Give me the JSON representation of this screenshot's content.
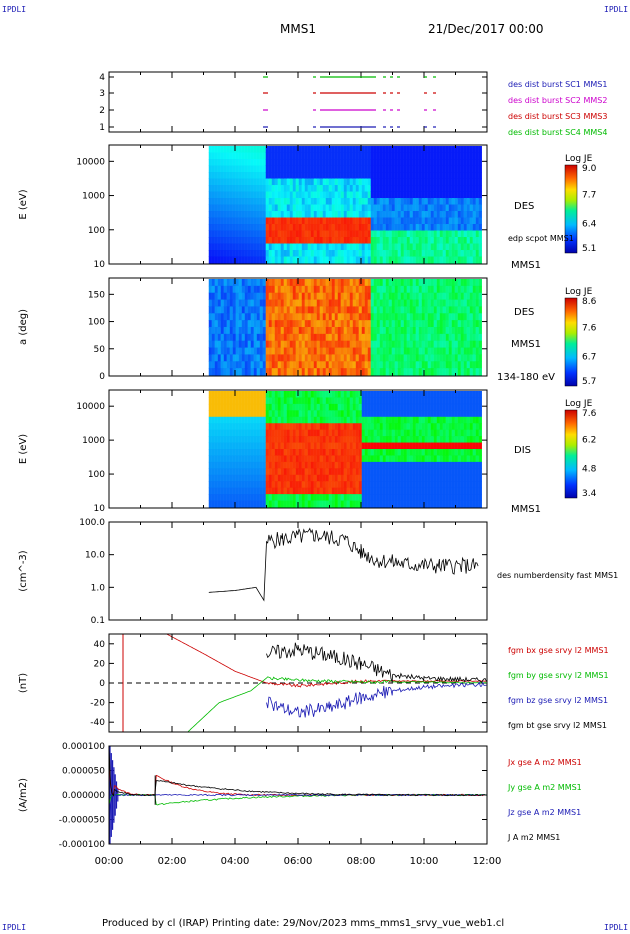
{
  "corner_labels": {
    "top_left": "IPDLI",
    "top_right": "IPDLI",
    "bottom_left": "IPDLI",
    "bottom_right": "IPDLI"
  },
  "header": {
    "title": "MMS1",
    "date": "21/Dec/2017 00:00"
  },
  "footer": {
    "text": "Produced by cl (IRAP)   Printing date: 29/Nov/2023   mms_mms1_srvy_vue_web1.cl"
  },
  "colors": {
    "mms1": "#1a1ab4",
    "mms2": "#cc00cc",
    "mms3": "#cc0000",
    "mms4": "#00bb00",
    "bt": "#000000"
  },
  "chart_data": [
    {
      "type": "scatter",
      "title": "",
      "ylabel": "",
      "yticks": [
        "1",
        "2",
        "3",
        "4"
      ],
      "legend": [
        "des dist burst SC1 MMS1",
        "des dist burst SC2 MMS2",
        "des dist burst SC3 MMS3",
        "des dist burst SC4 MMS4"
      ]
    },
    {
      "type": "heatmap",
      "ylabel": "E (eV)",
      "yscale": "log",
      "ylim": [
        10,
        30000
      ],
      "yticks": [
        "10",
        "100",
        "1000",
        "10000"
      ],
      "labels": [
        "DES",
        "edp scpot MMS1",
        "MMS1"
      ],
      "colorbar": {
        "title": "Log JE",
        "ticks": [
          "9.0",
          "7.7",
          "6.4",
          "5.1"
        ],
        "range": [
          5.1,
          9.0
        ]
      }
    },
    {
      "type": "heatmap",
      "ylabel": "a (deg)",
      "ylim": [
        0,
        180
      ],
      "yticks": [
        "0",
        "50",
        "100",
        "150"
      ],
      "labels": [
        "DES",
        "MMS1",
        "134-180 eV"
      ],
      "colorbar": {
        "title": "Log JE",
        "ticks": [
          "8.6",
          "7.6",
          "6.7",
          "5.7"
        ],
        "range": [
          5.7,
          8.6
        ]
      }
    },
    {
      "type": "heatmap",
      "ylabel": "E (eV)",
      "yscale": "log",
      "ylim": [
        10,
        30000
      ],
      "yticks": [
        "10",
        "100",
        "1000",
        "10000"
      ],
      "labels": [
        "DIS",
        "MMS1"
      ],
      "colorbar": {
        "title": "Log JE",
        "ticks": [
          "7.6",
          "6.2",
          "4.8",
          "3.4"
        ],
        "range": [
          3.4,
          7.6
        ]
      }
    },
    {
      "type": "line",
      "ylabel": "(cm^-3)",
      "yscale": "log",
      "ylim": [
        0.1,
        100
      ],
      "yticks": [
        "0.1",
        "1.0",
        "10.0",
        "100.0"
      ],
      "series": [
        {
          "name": "des numberdensity fast MMS1",
          "x": [
            "03:10",
            "04:00",
            "04:40",
            "04:55",
            "05:00",
            "05:30",
            "06:30",
            "07:30",
            "08:00",
            "08:30",
            "09:30",
            "10:30",
            "11:45"
          ],
          "y": [
            0.7,
            0.8,
            1.0,
            0.4,
            25,
            30,
            40,
            28,
            12,
            7,
            5,
            4.5,
            4.5
          ]
        }
      ]
    },
    {
      "type": "line",
      "ylabel": "(nT)",
      "ylim": [
        -50,
        50
      ],
      "yticks": [
        "-40",
        "-20",
        "0",
        "20",
        "40"
      ],
      "series": [
        {
          "name": "fgm bx gse srvy l2 MMS1",
          "x": [
            "01:50",
            "03:00",
            "04:00",
            "05:00",
            "06:00",
            "08:00",
            "10:00",
            "12:00"
          ],
          "y": [
            50,
            30,
            12,
            0,
            -3,
            2,
            2,
            2
          ]
        },
        {
          "name": "fgm by gse srvy l2 MMS1",
          "x": [
            "02:30",
            "03:30",
            "04:30",
            "05:00",
            "06:00",
            "08:00",
            "10:00",
            "12:00"
          ],
          "y": [
            -50,
            -20,
            -8,
            5,
            3,
            1,
            1,
            0
          ]
        },
        {
          "name": "fgm bz gse srvy l2 MMS1",
          "x": [
            "05:00",
            "06:00",
            "07:00",
            "08:00",
            "09:00",
            "10:00",
            "12:00"
          ],
          "y": [
            -20,
            -30,
            -25,
            -15,
            -8,
            -4,
            -1
          ]
        },
        {
          "name": "fgm bt gse srvy l2 MMS1",
          "x": [
            "05:00",
            "06:00",
            "07:00",
            "08:00",
            "09:00",
            "10:00",
            "12:00"
          ],
          "y": [
            30,
            35,
            28,
            20,
            8,
            5,
            3
          ]
        }
      ]
    },
    {
      "type": "line",
      "ylabel": "(A/m2)",
      "ylim": [
        -0.0001,
        0.0001
      ],
      "yticks": [
        "0.000100",
        "0.000050",
        "0.000000",
        "-0.000050",
        "-0.000100"
      ],
      "xticks": [
        "00:00",
        "02:00",
        "04:00",
        "06:00",
        "08:00",
        "10:00",
        "12:00"
      ],
      "series": [
        {
          "name": "Jx gse A m2 MMS1",
          "x": [
            "00:00",
            "00:10",
            "01:30",
            "06:00",
            "12:00"
          ],
          "y": [
            8e-05,
            2e-05,
            4e-05,
            0.0,
            0.0
          ]
        },
        {
          "name": "Jy gse A m2 MMS1",
          "x": [
            "00:00",
            "00:10",
            "01:30",
            "12:00"
          ],
          "y": [
            -2e-05,
            0.0,
            -2e-05,
            0.0
          ]
        },
        {
          "name": "Jz gse A m2 MMS1",
          "x": [
            "00:00",
            "00:10",
            "12:00"
          ],
          "y": [
            -0.0001,
            0.0,
            0.0
          ]
        },
        {
          "name": "J A m2 MMS1",
          "x": [
            "00:00",
            "00:10",
            "01:30",
            "12:00"
          ],
          "y": [
            0.0001,
            1e-05,
            3e-05,
            0.0
          ]
        }
      ]
    }
  ]
}
